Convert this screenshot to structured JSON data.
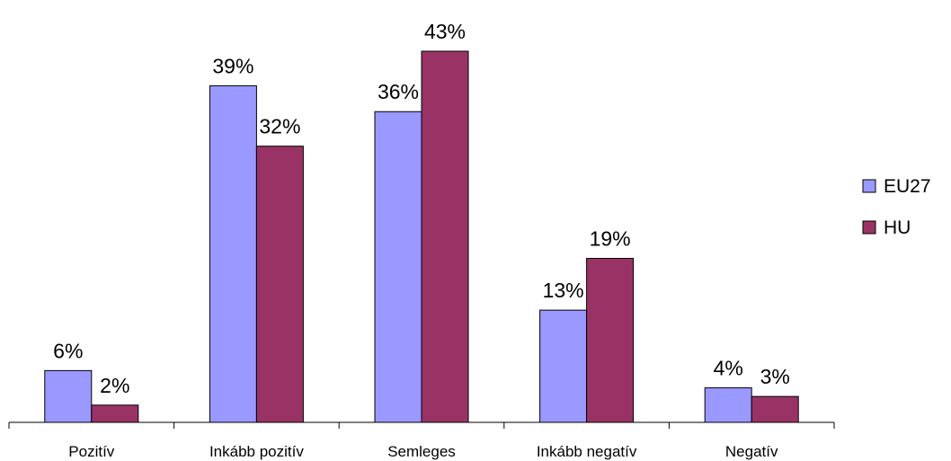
{
  "chart_data": {
    "type": "bar",
    "categories": [
      "Pozitív",
      "Inkább pozitív",
      "Semleges",
      "Inkább negatív",
      "Negatív"
    ],
    "series": [
      {
        "name": "EU27",
        "values": [
          6,
          39,
          36,
          13,
          4
        ],
        "labels": [
          "6%",
          "39%",
          "36%",
          "13%",
          "4%"
        ],
        "color": "#9999ff"
      },
      {
        "name": "HU",
        "values": [
          2,
          32,
          43,
          19,
          3
        ],
        "labels": [
          "2%",
          "32%",
          "43%",
          "19%",
          "3%"
        ],
        "color": "#993366"
      }
    ],
    "ylim": [
      0,
      43
    ],
    "grid": false,
    "legend_position": "right"
  }
}
